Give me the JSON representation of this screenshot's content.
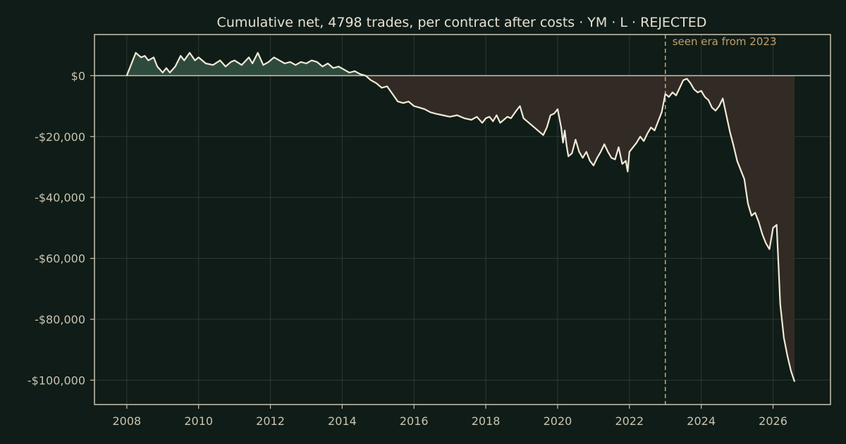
{
  "chart_data": {
    "type": "area",
    "title": "Cumulative net, 4798 trades, per contract after costs  ·  YM · L · REJECTED",
    "xlabel": "",
    "ylabel": "",
    "xlim": [
      2007.1,
      2027.6
    ],
    "ylim": [
      -108000,
      13500
    ],
    "x_ticks": [
      2008,
      2010,
      2012,
      2014,
      2016,
      2018,
      2020,
      2022,
      2024,
      2026
    ],
    "x_tick_labels": [
      "2008",
      "2010",
      "2012",
      "2014",
      "2016",
      "2018",
      "2020",
      "2022",
      "2024",
      "2026"
    ],
    "y_ticks": [
      0,
      -20000,
      -40000,
      -60000,
      -80000,
      -100000
    ],
    "y_tick_labels": [
      "$0",
      "-$20,000",
      "-$40,000",
      "-$60,000",
      "-$80,000",
      "-$100,000"
    ],
    "grid": true,
    "annotations": [
      {
        "type": "vline",
        "x": 2023.0,
        "label": "seen era from 2023"
      }
    ],
    "series": [
      {
        "x": [
          2008.0,
          2008.1,
          2008.25,
          2008.4,
          2008.5,
          2008.6,
          2008.75,
          2008.85,
          2009.0,
          2009.1,
          2009.2,
          2009.35,
          2009.5,
          2009.6,
          2009.75,
          2009.9,
          2010.0,
          2010.2,
          2010.4,
          2010.6,
          2010.75,
          2010.9,
          2011.0,
          2011.2,
          2011.4,
          2011.5,
          2011.65,
          2011.8,
          2011.95,
          2012.1,
          2012.25,
          2012.4,
          2012.55,
          2012.7,
          2012.85,
          2013.0,
          2013.15,
          2013.3,
          2013.45,
          2013.6,
          2013.75,
          2013.9,
          2014.05,
          2014.2,
          2014.35,
          2014.5,
          2014.65,
          2014.8,
          2014.95,
          2015.1,
          2015.25,
          2015.4,
          2015.55,
          2015.7,
          2015.85,
          2016.0,
          2016.15,
          2016.3,
          2016.45,
          2016.6,
          2016.8,
          2017.0,
          2017.2,
          2017.4,
          2017.6,
          2017.75,
          2017.9,
          2018.0,
          2018.1,
          2018.2,
          2018.3,
          2018.4,
          2018.5,
          2018.6,
          2018.7,
          2018.85,
          2018.95,
          2019.05,
          2019.2,
          2019.35,
          2019.5,
          2019.6,
          2019.7,
          2019.8,
          2019.9,
          2020.0,
          2020.1,
          2020.15,
          2020.2,
          2020.25,
          2020.3,
          2020.4,
          2020.5,
          2020.6,
          2020.7,
          2020.8,
          2020.9,
          2021.0,
          2021.1,
          2021.2,
          2021.3,
          2021.4,
          2021.5,
          2021.6,
          2021.7,
          2021.8,
          2021.9,
          2021.95,
          2022.0,
          2022.1,
          2022.2,
          2022.3,
          2022.4,
          2022.5,
          2022.6,
          2022.7,
          2022.8,
          2022.9,
          2023.0,
          2023.1,
          2023.2,
          2023.3,
          2023.4,
          2023.5,
          2023.6,
          2023.7,
          2023.8,
          2023.9,
          2024.0,
          2024.1,
          2024.2,
          2024.3,
          2024.4,
          2024.5,
          2024.6,
          2024.7,
          2024.8,
          2024.9,
          2025.0,
          2025.1,
          2025.2,
          2025.3,
          2025.4,
          2025.5,
          2025.6,
          2025.7,
          2025.8,
          2025.9,
          2026.0,
          2026.1,
          2026.15,
          2026.2,
          2026.3,
          2026.4,
          2026.5,
          2026.6
        ],
        "values": [
          0,
          3000,
          7500,
          6000,
          6500,
          5000,
          6000,
          3000,
          1000,
          2500,
          1000,
          3000,
          6500,
          5000,
          7500,
          5000,
          6000,
          4000,
          3500,
          5000,
          3000,
          4500,
          5000,
          3500,
          6000,
          4000,
          7500,
          3500,
          4500,
          6000,
          5000,
          4000,
          4500,
          3500,
          4500,
          4000,
          5000,
          4500,
          3000,
          4000,
          2500,
          3000,
          2000,
          1000,
          1500,
          500,
          0,
          -1500,
          -2500,
          -4000,
          -3500,
          -6000,
          -8500,
          -9000,
          -8500,
          -10000,
          -10500,
          -11000,
          -12000,
          -12500,
          -13000,
          -13500,
          -13000,
          -14000,
          -14500,
          -13500,
          -15500,
          -14000,
          -13500,
          -15000,
          -13000,
          -15500,
          -14500,
          -13500,
          -14000,
          -11500,
          -10000,
          -14000,
          -15500,
          -17000,
          -18500,
          -19500,
          -17000,
          -13000,
          -12500,
          -11000,
          -17000,
          -22000,
          -18000,
          -23000,
          -26500,
          -25500,
          -21000,
          -25000,
          -27000,
          -25000,
          -28000,
          -29500,
          -27000,
          -25000,
          -22500,
          -25000,
          -27000,
          -27500,
          -23500,
          -29000,
          -28000,
          -31500,
          -25000,
          -23500,
          -22000,
          -20000,
          -21500,
          -19000,
          -17000,
          -18000,
          -15000,
          -12000,
          -6000,
          -7000,
          -5500,
          -6500,
          -4000,
          -1500,
          -1000,
          -2500,
          -4500,
          -5500,
          -5000,
          -7000,
          -8000,
          -10500,
          -11500,
          -10000,
          -7500,
          -13000,
          -18500,
          -23000,
          -28000,
          -31000,
          -34000,
          -42000,
          -46000,
          -45000,
          -48000,
          -52000,
          -55000,
          -57000,
          -50000,
          -49000,
          -62000,
          -75000,
          -86000,
          -92000,
          -97000,
          -100500
        ]
      }
    ]
  },
  "colors": {
    "background": "#101c17",
    "grid": "#2c3b33",
    "axis": "#c9c3b2",
    "line": "#f1ead8",
    "fill_positive": "#2e4a3d",
    "fill_negative": "#322b25",
    "vline": "#c8a96b"
  }
}
